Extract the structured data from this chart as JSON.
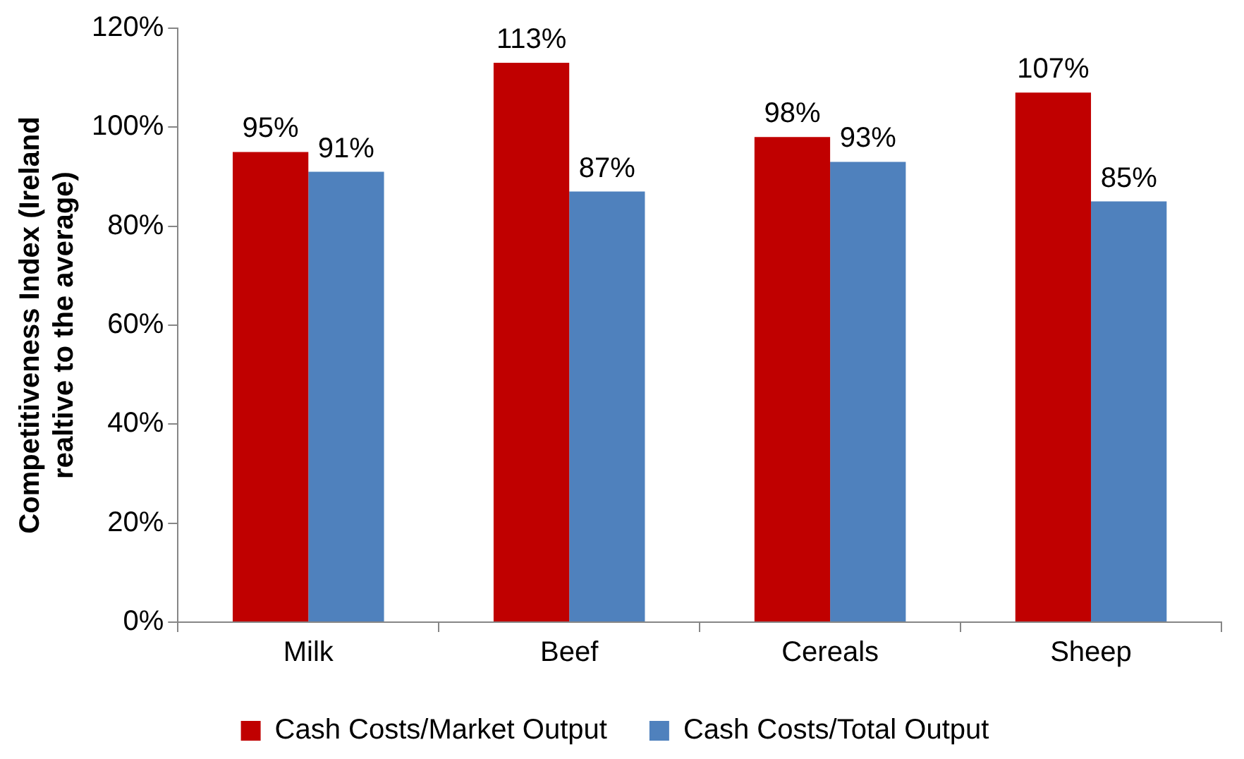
{
  "chart_data": {
    "type": "bar",
    "ylabel": "Competitiveness Index (Ireland realtive to the average)",
    "categories": [
      "Milk",
      "Beef",
      "Cereals",
      "Sheep"
    ],
    "series": [
      {
        "name": "Cash Costs/Market Output",
        "color": "#c00000",
        "values": [
          95,
          113,
          98,
          107
        ],
        "value_labels": [
          "95%",
          "113%",
          "98%",
          "107%"
        ]
      },
      {
        "name": "Cash Costs/Total Output",
        "color": "#4f81bd",
        "values": [
          91,
          87,
          93,
          85
        ],
        "value_labels": [
          "91%",
          "87%",
          "93%",
          "85%"
        ]
      }
    ],
    "ylim": [
      0,
      120
    ],
    "yticks": [
      {
        "value": 0,
        "label": "0%"
      },
      {
        "value": 20,
        "label": "20%"
      },
      {
        "value": 40,
        "label": "40%"
      },
      {
        "value": 60,
        "label": "60%"
      },
      {
        "value": 80,
        "label": "80%"
      },
      {
        "value": 100,
        "label": "100%"
      },
      {
        "value": 120,
        "label": "120%"
      }
    ],
    "grid": false,
    "legend": "bottom"
  }
}
